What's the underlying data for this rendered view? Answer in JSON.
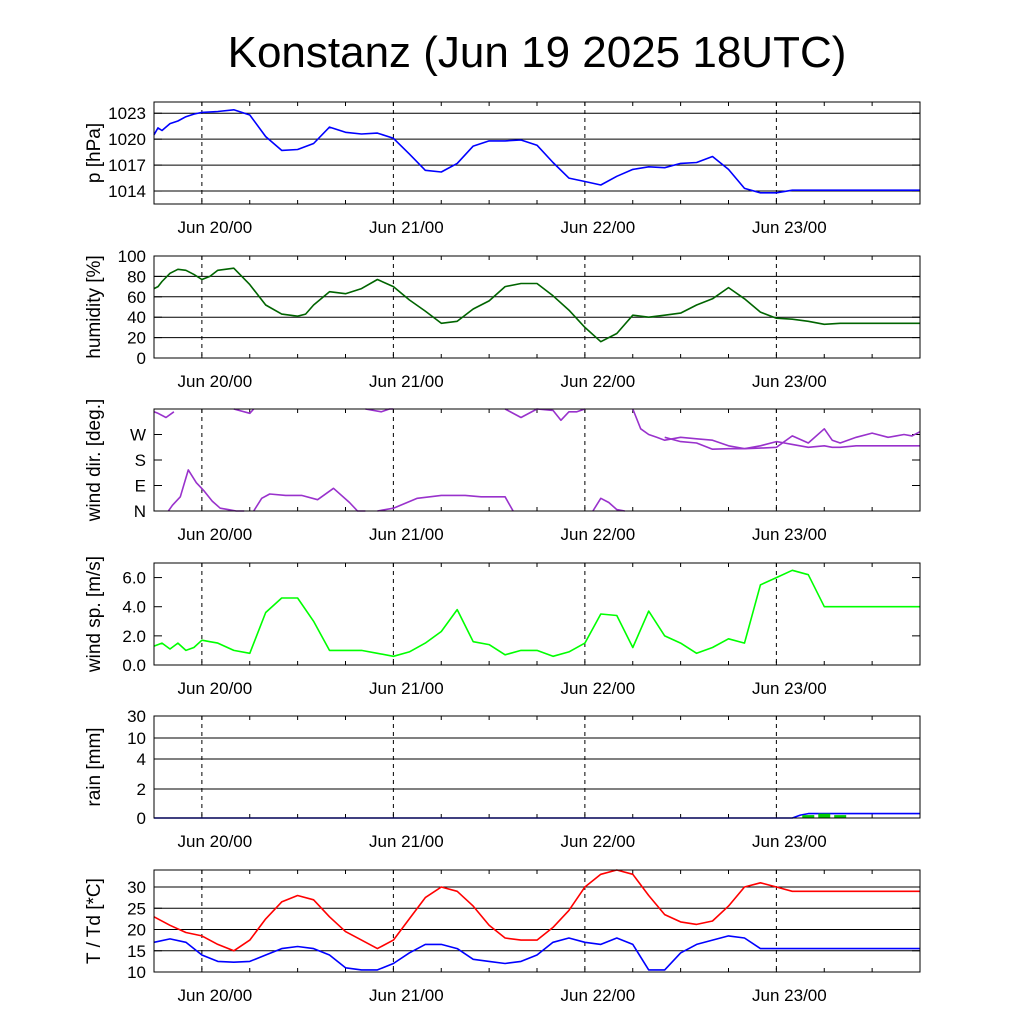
{
  "title": "Konstanz (Jun 19 2025 18UTC)",
  "x_tick_labels": [
    "Jun 20/00",
    "Jun 21/00",
    "Jun 22/00",
    "Jun 23/00"
  ],
  "chart_data": [
    {
      "id": "pressure",
      "type": "line",
      "ylabel": "p [hPa]",
      "ylim": [
        1012.5,
        1024.3
      ],
      "yticks": [
        {
          "v": 1014,
          "label": "1014"
        },
        {
          "v": 1017,
          "label": "1017"
        },
        {
          "v": 1020,
          "label": "1020"
        },
        {
          "v": 1023,
          "label": "1023"
        }
      ],
      "grid": true,
      "series": [
        {
          "color": "#0000ff",
          "x": [
            0,
            0.5,
            1,
            2,
            3,
            4,
            5,
            6,
            8,
            10,
            12,
            14,
            16,
            18,
            20,
            22,
            24,
            26,
            28,
            30,
            32,
            34,
            36,
            38,
            40,
            42,
            44,
            46,
            48,
            50,
            52,
            54,
            56,
            58,
            60,
            62,
            64,
            66,
            68,
            70,
            72,
            74,
            76,
            78,
            80,
            82,
            84,
            86,
            88,
            90,
            92,
            94,
            96
          ],
          "y": [
            1020.5,
            1021.3,
            1021.0,
            1021.8,
            1022.1,
            1022.6,
            1022.9,
            1023.1,
            1023.2,
            1023.4,
            1022.8,
            1020.3,
            1018.7,
            1018.8,
            1019.5,
            1021.4,
            1020.8,
            1020.6,
            1020.7,
            1020.1,
            1018.3,
            1016.4,
            1016.2,
            1017.2,
            1019.2,
            1019.8,
            1019.8,
            1019.9,
            1019.3,
            1017.3,
            1015.5,
            1015.1,
            1014.7,
            1015.7,
            1016.5,
            1016.8,
            1016.7,
            1017.2,
            1017.3,
            1018.0,
            1016.5,
            1014.3,
            1013.8,
            1013.8,
            1014.1,
            1014.1,
            1014.1,
            1014.1,
            1014.1,
            1014.1,
            1014.1,
            1014.1,
            1014.1
          ]
        }
      ]
    },
    {
      "id": "humidity",
      "type": "line",
      "ylabel": "humidity [%]",
      "ylim": [
        0,
        100
      ],
      "yticks": [
        {
          "v": 0,
          "label": "0"
        },
        {
          "v": 20,
          "label": "20"
        },
        {
          "v": 40,
          "label": "40"
        },
        {
          "v": 60,
          "label": "60"
        },
        {
          "v": 80,
          "label": "80"
        },
        {
          "v": 100,
          "label": "100"
        }
      ],
      "grid": true,
      "series": [
        {
          "color": "#006400",
          "x": [
            0,
            0.5,
            1,
            2,
            3,
            4,
            5,
            6,
            7,
            8,
            10,
            12,
            14,
            16,
            18,
            19,
            20,
            22,
            24,
            26,
            28,
            30,
            32,
            34,
            36,
            38,
            40,
            42,
            44,
            46,
            48,
            50,
            52,
            54,
            56,
            58,
            60,
            62,
            64,
            66,
            68,
            70,
            72,
            74,
            76,
            78,
            80,
            82,
            84,
            86,
            88,
            90,
            92,
            94,
            96
          ],
          "y": [
            68,
            70,
            75,
            83,
            87,
            86,
            82,
            77,
            80,
            86,
            88,
            72,
            52,
            43,
            41,
            43,
            52,
            65,
            63,
            68,
            77,
            70,
            57,
            46,
            34,
            36,
            48,
            56,
            70,
            73,
            73,
            61,
            47,
            30,
            16,
            24,
            42,
            40,
            42,
            44,
            52,
            58,
            69,
            58,
            45,
            39,
            38,
            36,
            33,
            34,
            34,
            34,
            34,
            34,
            34
          ]
        }
      ]
    },
    {
      "id": "wind_direction",
      "type": "line",
      "ylabel": "wind dir. [deg.]",
      "ylim": [
        0,
        360
      ],
      "yticks": [
        {
          "v": 0,
          "label": "N"
        },
        {
          "v": 90,
          "label": "E"
        },
        {
          "v": 180,
          "label": "S"
        },
        {
          "v": 270,
          "label": "W"
        }
      ],
      "grid": false,
      "series": [
        {
          "color": "#9932cc",
          "segments": [
            {
              "x": [
                0,
                0.5,
                1.5,
                2.5
              ],
              "y": [
                350,
                345,
                330,
                350
              ]
            },
            {
              "x": [
                1.8,
                2.3,
                3.3,
                4.3,
                5.3,
                6.3,
                7.3,
                8.3,
                9.3,
                10.3,
                11.3
              ],
              "y": [
                0,
                20,
                50,
                145,
                100,
                70,
                35,
                10,
                5,
                0,
                0
              ]
            },
            {
              "x": [
                10,
                12,
                12.5
              ],
              "y": [
                360,
                345,
                360
              ]
            },
            {
              "x": [
                12.5,
                13.5,
                14.5,
                16.5,
                18.5,
                20.5,
                22.5,
                24.5,
                25.5,
                26.5
              ],
              "y": [
                0,
                45,
                60,
                55,
                55,
                40,
                80,
                30,
                0,
                0
              ]
            },
            {
              "x": [
                26.5,
                28.5,
                29.5,
                30
              ],
              "y": [
                360,
                350,
                360,
                360
              ]
            },
            {
              "x": [
                28,
                30,
                33,
                36,
                39,
                41,
                44,
                45
              ],
              "y": [
                0,
                10,
                45,
                55,
                55,
                50,
                50,
                0
              ]
            },
            {
              "x": [
                44,
                46,
                48,
                50,
                51,
                52,
                53,
                54
              ],
              "y": [
                360,
                330,
                360,
                355,
                320,
                350,
                350,
                360
              ]
            },
            {
              "x": [
                55,
                56,
                57,
                58,
                59
              ],
              "y": [
                0,
                45,
                30,
                5,
                0
              ]
            },
            {
              "x": [
                60,
                61,
                62,
                63,
                64,
                66,
                68,
                70,
                72,
                74,
                76,
                78,
                79,
                80,
                82,
                84,
                85,
                86,
                88,
                90,
                92,
                94,
                96
              ],
              "y": [
                360,
                290,
                270,
                260,
                250,
                260,
                255,
                250,
                230,
                220,
                230,
                245,
                240,
                235,
                225,
                230,
                225,
                225,
                230,
                230,
                230,
                230,
                230
              ]
            },
            {
              "x": [
                64,
                66,
                68,
                70,
                72,
                74,
                76,
                78,
                80,
                82,
                84,
                85,
                86,
                88,
                90,
                92,
                93,
                94,
                95,
                96
              ],
              "y": [
                260,
                245,
                240,
                218,
                220,
                220,
                222,
                225,
                265,
                240,
                290,
                250,
                240,
                260,
                275,
                260,
                265,
                270,
                265,
                280
              ]
            }
          ]
        }
      ]
    },
    {
      "id": "wind_speed",
      "type": "line",
      "ylabel": "wind sp. [m/s]",
      "ylim": [
        0,
        7
      ],
      "yticks": [
        {
          "v": 0,
          "label": "0.0"
        },
        {
          "v": 2,
          "label": "2.0"
        },
        {
          "v": 4,
          "label": "4.0"
        },
        {
          "v": 6,
          "label": "6.0"
        }
      ],
      "grid": false,
      "series": [
        {
          "color": "#00ff00",
          "x": [
            0,
            1,
            2,
            3,
            4,
            5,
            6,
            7,
            8,
            10,
            12,
            14,
            16,
            18,
            20,
            22,
            24,
            26,
            28,
            30,
            32,
            34,
            36,
            38,
            40,
            42,
            44,
            46,
            48,
            50,
            52,
            54,
            56,
            58,
            60,
            62,
            64,
            66,
            68,
            70,
            72,
            74,
            76,
            78,
            80,
            82,
            84,
            86,
            88,
            90,
            92,
            94,
            96
          ],
          "y": [
            1.3,
            1.5,
            1.1,
            1.5,
            1.0,
            1.2,
            1.7,
            1.6,
            1.5,
            1.0,
            0.8,
            3.6,
            4.6,
            4.6,
            3.0,
            1.0,
            1.0,
            1.0,
            0.8,
            0.6,
            0.9,
            1.5,
            2.3,
            3.8,
            1.6,
            1.4,
            0.7,
            1.0,
            1.0,
            0.6,
            0.9,
            1.5,
            3.5,
            3.4,
            1.2,
            3.7,
            2.0,
            1.5,
            0.8,
            1.2,
            1.8,
            1.5,
            5.5,
            6.0,
            6.5,
            6.2,
            4.0,
            4.0,
            4.0,
            4.0,
            4.0,
            4.0,
            4.0
          ]
        }
      ]
    },
    {
      "id": "rain",
      "type": "area",
      "ylabel": "rain [mm]",
      "ylim": [
        0,
        30
      ],
      "yticks": [
        {
          "v": 0,
          "label": "0"
        },
        {
          "v": 2,
          "label": "2"
        },
        {
          "v": 4,
          "label": "4"
        },
        {
          "v": 10,
          "label": "10"
        },
        {
          "v": 30,
          "label": "30"
        }
      ],
      "grid": true,
      "series": [
        {
          "color": "#0000ff",
          "x": [
            0,
            80,
            81,
            82,
            83,
            96
          ],
          "y": [
            0,
            0,
            0.2,
            0.3,
            0.3,
            0.3
          ]
        }
      ],
      "bars": {
        "color": "#00cc00",
        "x": [
          82,
          84,
          86
        ],
        "values": [
          0.2,
          0.3,
          0.2
        ]
      }
    },
    {
      "id": "temperature",
      "type": "line",
      "ylabel": "T / Td [*C]",
      "ylim": [
        10,
        34
      ],
      "yticks": [
        {
          "v": 10,
          "label": "10"
        },
        {
          "v": 15,
          "label": "15"
        },
        {
          "v": 20,
          "label": "20"
        },
        {
          "v": 25,
          "label": "25"
        },
        {
          "v": 30,
          "label": "30"
        }
      ],
      "grid": true,
      "series": [
        {
          "color": "#ff0000",
          "x": [
            0,
            2,
            4,
            6,
            8,
            10,
            12,
            14,
            16,
            18,
            20,
            22,
            24,
            26,
            28,
            30,
            32,
            34,
            36,
            38,
            40,
            42,
            44,
            46,
            48,
            50,
            52,
            54,
            56,
            58,
            60,
            62,
            64,
            66,
            68,
            70,
            72,
            74,
            76,
            78,
            80,
            82,
            84,
            86,
            88,
            90,
            92,
            94,
            96
          ],
          "y": [
            23.0,
            21.0,
            19.3,
            18.5,
            16.5,
            15.0,
            17.5,
            22.5,
            26.5,
            28.0,
            27.0,
            23.0,
            19.5,
            17.5,
            15.5,
            17.5,
            22.5,
            27.5,
            30.0,
            29.0,
            25.5,
            21.0,
            18.0,
            17.5,
            17.5,
            20.5,
            24.5,
            30.0,
            33.0,
            34.0,
            33.0,
            28.0,
            23.5,
            21.8,
            21.2,
            22.0,
            25.5,
            30.0,
            31.0,
            30.0,
            29.0,
            29.0,
            29.0,
            29.0,
            29.0,
            29.0,
            29.0,
            29.0,
            29.0
          ]
        },
        {
          "color": "#0000ff",
          "x": [
            0,
            2,
            4,
            6,
            8,
            10,
            12,
            14,
            16,
            18,
            20,
            22,
            24,
            26,
            28,
            30,
            32,
            34,
            36,
            38,
            40,
            42,
            44,
            46,
            48,
            50,
            52,
            54,
            56,
            58,
            60,
            62,
            64,
            66,
            68,
            70,
            72,
            74,
            76,
            78,
            80,
            82,
            84,
            86,
            88,
            90,
            92,
            94,
            96
          ],
          "y": [
            17.0,
            17.8,
            17.0,
            14.0,
            12.5,
            12.3,
            12.5,
            14.0,
            15.5,
            16.0,
            15.5,
            14.0,
            11.0,
            10.5,
            10.5,
            12.0,
            14.5,
            16.5,
            16.5,
            15.5,
            13.0,
            12.5,
            12.0,
            12.5,
            14.0,
            17.0,
            18.0,
            17.0,
            16.5,
            18.0,
            16.5,
            10.5,
            10.5,
            14.5,
            16.5,
            17.5,
            18.5,
            18.0,
            15.5,
            15.5,
            15.5,
            15.5,
            15.5,
            15.5,
            15.5,
            15.5,
            15.5,
            15.5,
            15.5
          ]
        }
      ]
    }
  ]
}
